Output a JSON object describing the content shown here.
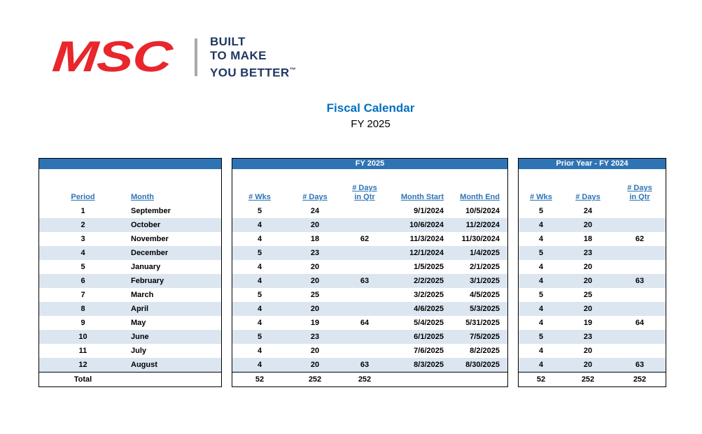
{
  "brand": {
    "logo_text": "MSC",
    "tagline_line1": "BUILT",
    "tagline_line2": "TO MAKE",
    "tagline_line3": "YOU BETTER",
    "trademark": "™",
    "logo_color": "#E8262C",
    "tagline_color": "#1F3864"
  },
  "title": "Fiscal Calendar",
  "subtitle": "FY 2025",
  "colors": {
    "header_bar_blue": "#2E74B5",
    "row_stripe_blue": "#DCE6F1",
    "header_text_blue": "#2E74B5",
    "title_blue": "#0070C0"
  },
  "tables": {
    "left": {
      "header_bar": "",
      "columns": [
        "Period",
        "Month"
      ]
    },
    "middle": {
      "header_bar": "FY 2025",
      "columns": [
        "# Wks",
        "# Days",
        "# Days\nin Qtr",
        "Month Start",
        "Month End"
      ]
    },
    "right": {
      "header_bar": "Prior Year - FY 2024",
      "columns": [
        "# Wks",
        "# Days",
        "# Days\nin Qtr"
      ]
    }
  },
  "rows": [
    {
      "period": "1",
      "month": "September",
      "wks": "5",
      "days": "24",
      "qtr": "",
      "start": "9/1/2024",
      "end": "10/5/2024",
      "p_wks": "5",
      "p_days": "24",
      "p_qtr": ""
    },
    {
      "period": "2",
      "month": "October",
      "wks": "4",
      "days": "20",
      "qtr": "",
      "start": "10/6/2024",
      "end": "11/2/2024",
      "p_wks": "4",
      "p_days": "20",
      "p_qtr": ""
    },
    {
      "period": "3",
      "month": "November",
      "wks": "4",
      "days": "18",
      "qtr": "62",
      "start": "11/3/2024",
      "end": "11/30/2024",
      "p_wks": "4",
      "p_days": "18",
      "p_qtr": "62"
    },
    {
      "period": "4",
      "month": "December",
      "wks": "5",
      "days": "23",
      "qtr": "",
      "start": "12/1/2024",
      "end": "1/4/2025",
      "p_wks": "5",
      "p_days": "23",
      "p_qtr": ""
    },
    {
      "period": "5",
      "month": "January",
      "wks": "4",
      "days": "20",
      "qtr": "",
      "start": "1/5/2025",
      "end": "2/1/2025",
      "p_wks": "4",
      "p_days": "20",
      "p_qtr": ""
    },
    {
      "period": "6",
      "month": "February",
      "wks": "4",
      "days": "20",
      "qtr": "63",
      "start": "2/2/2025",
      "end": "3/1/2025",
      "p_wks": "4",
      "p_days": "20",
      "p_qtr": "63"
    },
    {
      "period": "7",
      "month": "March",
      "wks": "5",
      "days": "25",
      "qtr": "",
      "start": "3/2/2025",
      "end": "4/5/2025",
      "p_wks": "5",
      "p_days": "25",
      "p_qtr": ""
    },
    {
      "period": "8",
      "month": "April",
      "wks": "4",
      "days": "20",
      "qtr": "",
      "start": "4/6/2025",
      "end": "5/3/2025",
      "p_wks": "4",
      "p_days": "20",
      "p_qtr": ""
    },
    {
      "period": "9",
      "month": "May",
      "wks": "4",
      "days": "19",
      "qtr": "64",
      "start": "5/4/2025",
      "end": "5/31/2025",
      "p_wks": "4",
      "p_days": "19",
      "p_qtr": "64"
    },
    {
      "period": "10",
      "month": "June",
      "wks": "5",
      "days": "23",
      "qtr": "",
      "start": "6/1/2025",
      "end": "7/5/2025",
      "p_wks": "5",
      "p_days": "23",
      "p_qtr": ""
    },
    {
      "period": "11",
      "month": "July",
      "wks": "4",
      "days": "20",
      "qtr": "",
      "start": "7/6/2025",
      "end": "8/2/2025",
      "p_wks": "4",
      "p_days": "20",
      "p_qtr": ""
    },
    {
      "period": "12",
      "month": "August",
      "wks": "4",
      "days": "20",
      "qtr": "63",
      "start": "8/3/2025",
      "end": "8/30/2025",
      "p_wks": "4",
      "p_days": "20",
      "p_qtr": "63"
    }
  ],
  "total": {
    "label": "Total",
    "wks": "52",
    "days": "252",
    "qtr": "252",
    "p_wks": "52",
    "p_days": "252",
    "p_qtr": "252"
  }
}
